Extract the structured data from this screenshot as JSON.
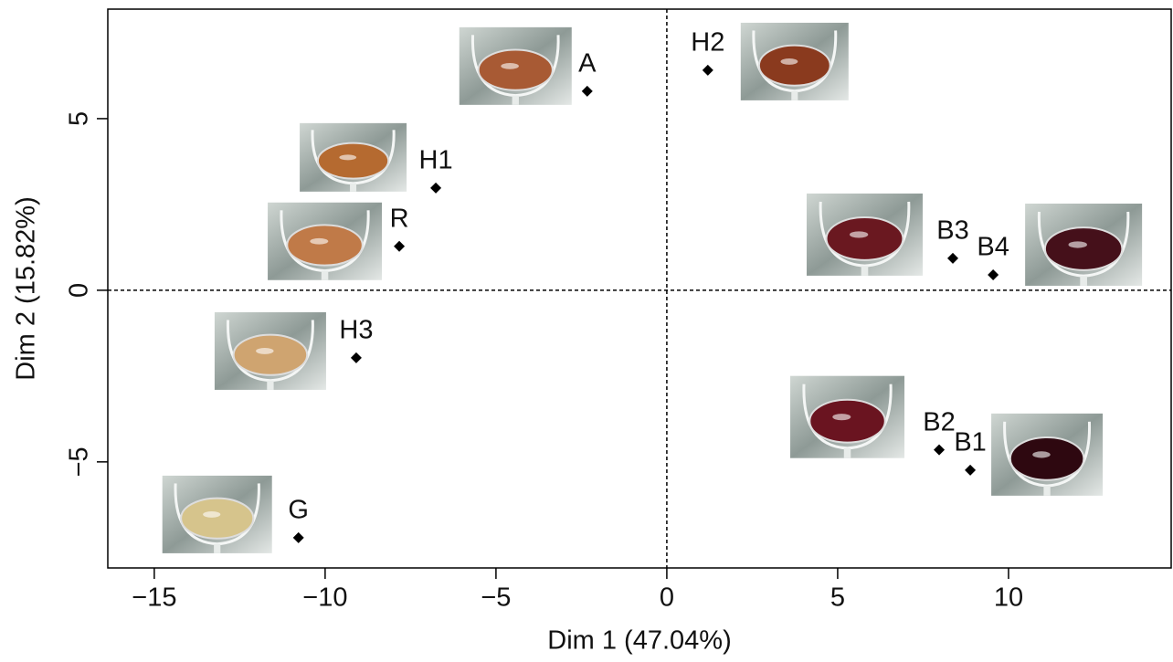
{
  "chart_data": {
    "type": "scatter",
    "x_label": "Dim 1 (47.04%)",
    "y_label": "Dim 2 (15.82%)",
    "labels": [
      "A",
      "H2",
      "H1",
      "R",
      "B3",
      "B4",
      "H3",
      "B2",
      "B1",
      "G"
    ],
    "x": [
      -2.33,
      1.2,
      -6.76,
      -7.83,
      8.37,
      9.55,
      -9.09,
      7.97,
      8.88,
      -10.78
    ],
    "y": [
      5.8,
      6.41,
      2.98,
      1.28,
      0.93,
      0.45,
      -1.97,
      -4.65,
      -5.24,
      -7.21
    ],
    "color": "#000000",
    "xlim": [
      -16.36,
      14.76
    ],
    "ylim": [
      -8.09,
      8.19
    ],
    "xticks": [
      {
        "value": -15,
        "label": "−15"
      },
      {
        "value": -10,
        "label": "−10"
      },
      {
        "value": -5,
        "label": "−5"
      },
      0,
      5,
      10
    ],
    "yticks": [
      {
        "value": -5,
        "label": "−5"
      },
      0,
      5
    ],
    "zero_lines": true
  }
}
